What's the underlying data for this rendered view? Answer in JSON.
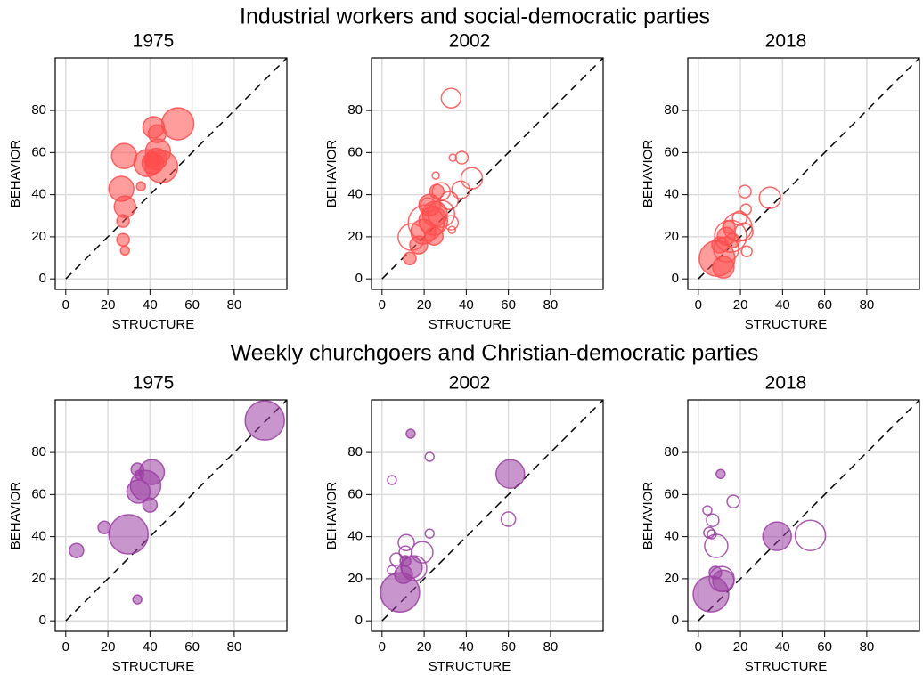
{
  "section_titles": [
    "Industrial workers and social-democratic parties",
    "Weekly churchgoers and Christian-democratic parties"
  ],
  "chart_data": [
    {
      "type": "scatter",
      "title": "1975",
      "xlabel": "STRUCTURE",
      "ylabel": "BEHAVIOR",
      "xlim": [
        -5,
        105
      ],
      "ylim": [
        -5,
        105
      ],
      "xticks": [
        0,
        20,
        40,
        60,
        80
      ],
      "yticks": [
        0,
        20,
        40,
        60,
        80
      ],
      "grid": true,
      "series": [
        {
          "color": "#ff4d4d",
          "filled": true,
          "x": [
            27.7,
            26.4,
            28.1,
            27.2,
            27.2,
            28.1,
            35.7,
            53.2,
            41.7,
            43.4,
            43.8,
            43,
            38.7,
            41.3,
            45.5,
            40.8
          ],
          "values": [
            58.4,
            42.8,
            34.3,
            27.5,
            18.6,
            13.5,
            44,
            73.7,
            72,
            69,
            60.5,
            57,
            55,
            55,
            53.3,
            56.3
          ],
          "sizes": [
            14,
            14,
            12,
            7,
            7,
            5,
            5,
            18,
            12,
            10,
            14,
            12,
            15,
            12,
            18,
            8
          ]
        }
      ]
    },
    {
      "type": "scatter",
      "title": "2002",
      "xlabel": "STRUCTURE",
      "ylabel": "BEHAVIOR",
      "xlim": [
        -5,
        105
      ],
      "ylim": [
        -5,
        105
      ],
      "xticks": [
        0,
        20,
        40,
        60,
        80
      ],
      "yticks": [
        0,
        20,
        40,
        60,
        80
      ],
      "grid": true,
      "series": [
        {
          "color": "#ff4d4d",
          "filled": true,
          "x": [
            13.2,
            22.6,
            25.1,
            24.7,
            26,
            24.3,
            19.6,
            17.4
          ],
          "values": [
            9.7,
            35.1,
            30.9,
            20.3,
            41.5,
            27.5,
            22.4,
            16.1
          ],
          "sizes": [
            7,
            12,
            14,
            10,
            8,
            16,
            14,
            10
          ]
        },
        {
          "color": "#ff4d4d",
          "filled": false,
          "x": [
            32.8,
            37.9,
            33.6,
            42.6,
            37.4,
            25.5,
            14,
            20.9,
            28.1,
            32.8,
            31.9,
            33.2,
            21.7,
            28.1
          ],
          "values": [
            85.9,
            57.6,
            57.6,
            47.8,
            42.3,
            49.1,
            19.9,
            26.7,
            30.9,
            26.7,
            37.2,
            23.3,
            35.1,
            41.5
          ],
          "sizes": [
            11,
            7,
            4,
            12,
            10,
            4,
            15,
            20,
            15,
            8,
            10,
            4,
            8,
            10
          ]
        }
      ]
    },
    {
      "type": "scatter",
      "title": "2018",
      "xlabel": "STRUCTURE",
      "ylabel": "BEHAVIOR",
      "xlim": [
        -5,
        105
      ],
      "ylim": [
        -5,
        105
      ],
      "xticks": [
        0,
        20,
        40,
        60,
        80
      ],
      "yticks": [
        0,
        20,
        40,
        60,
        80
      ],
      "grid": true,
      "series": [
        {
          "color": "#ff4d4d",
          "filled": true,
          "x": [
            8.9,
            11.9,
            13.2,
            16.2,
            10.2,
            14.5
          ],
          "values": [
            9.7,
            5.5,
            20.3,
            18.2,
            16.1,
            24.6
          ],
          "sizes": [
            20,
            12,
            10,
            8,
            9,
            7
          ]
        },
        {
          "color": "#ff4d4d",
          "filled": false,
          "x": [
            34,
            22.1,
            22.6,
            18.7,
            15.3,
            23,
            19.6,
            13.2,
            21.7
          ],
          "values": [
            38.5,
            41.5,
            33,
            24.6,
            20.3,
            13.1,
            28.8,
            14,
            22.4
          ],
          "sizes": [
            12,
            7,
            6,
            16,
            18,
            6,
            8,
            14,
            10
          ]
        }
      ]
    },
    {
      "type": "scatter",
      "title": "1975",
      "xlabel": "STRUCTURE",
      "ylabel": "BEHAVIOR",
      "xlim": [
        -5,
        105
      ],
      "ylim": [
        -5,
        105
      ],
      "xticks": [
        0,
        20,
        40,
        60,
        80
      ],
      "yticks": [
        0,
        20,
        40,
        60,
        80
      ],
      "grid": true,
      "series": [
        {
          "color": "#9b3fa3",
          "filled": true,
          "x": [
            94.5,
            29.8,
            5.1,
            18.3,
            34,
            40,
            40.9,
            34,
            37.9,
            34.5,
            34.9
          ],
          "values": [
            95.2,
            41.1,
            33.4,
            44.4,
            10.2,
            55,
            70.7,
            72,
            64.3,
            61.4,
            69.4
          ],
          "sizes": [
            22,
            22,
            8,
            7,
            5,
            8,
            14,
            7,
            17,
            13,
            5
          ]
        }
      ]
    },
    {
      "type": "scatter",
      "title": "2002",
      "xlabel": "STRUCTURE",
      "ylabel": "BEHAVIOR",
      "xlim": [
        -5,
        105
      ],
      "ylim": [
        -5,
        105
      ],
      "xticks": [
        0,
        20,
        40,
        60,
        80
      ],
      "yticks": [
        0,
        20,
        40,
        60,
        80
      ],
      "grid": true,
      "series": [
        {
          "color": "#9b3fa3",
          "filled": true,
          "x": [
            60.9,
            13.6,
            8.5,
            14,
            10.2,
            11.1
          ],
          "values": [
            69.8,
            88.9,
            13.5,
            25.4,
            22,
            28.4
          ],
          "sizes": [
            16,
            5,
            22,
            12,
            10,
            6
          ]
        },
        {
          "color": "#9b3fa3",
          "filled": false,
          "x": [
            4.7,
            22.6,
            22.6,
            60,
            19.1,
            11.5,
            6.8,
            11.1,
            4.7,
            15.3
          ],
          "values": [
            66.9,
            77.9,
            41.5,
            48.3,
            32.6,
            37.2,
            29.2,
            32.6,
            24.1,
            25
          ],
          "sizes": [
            5,
            5,
            5,
            8,
            12,
            9,
            7,
            7,
            5,
            14
          ]
        }
      ]
    },
    {
      "type": "scatter",
      "title": "2018",
      "xlabel": "STRUCTURE",
      "ylabel": "BEHAVIOR",
      "xlim": [
        -5,
        105
      ],
      "ylim": [
        -5,
        105
      ],
      "xticks": [
        0,
        20,
        40,
        60,
        80
      ],
      "yticks": [
        0,
        20,
        40,
        60,
        80
      ],
      "grid": true,
      "series": [
        {
          "color": "#9b3fa3",
          "filled": true,
          "x": [
            37.4,
            10.6,
            6,
            11.9,
            8.1
          ],
          "values": [
            40.2,
            69.8,
            12.7,
            19,
            22.9
          ],
          "sizes": [
            16,
            5,
            20,
            12,
            7
          ]
        },
        {
          "color": "#9b3fa3",
          "filled": false,
          "x": [
            53.2,
            8.5,
            6.8,
            5.1,
            4.3,
            16.6,
            11.1,
            6.4
          ],
          "values": [
            40.6,
            35.6,
            47.8,
            41.9,
            52.5,
            56.7,
            19.9,
            41.1
          ],
          "sizes": [
            17,
            13,
            7,
            6,
            5,
            7,
            14,
            5
          ]
        }
      ]
    }
  ]
}
